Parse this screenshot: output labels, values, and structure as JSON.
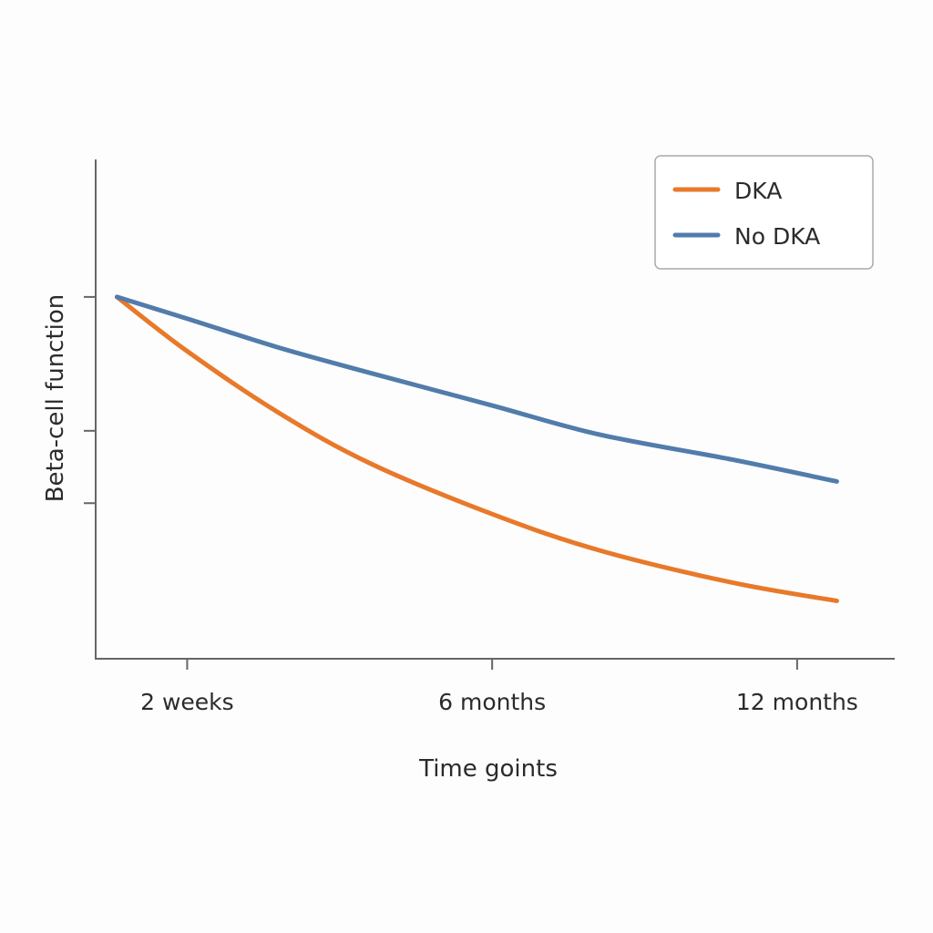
{
  "chart_data": {
    "type": "line",
    "title": "",
    "xlabel": "Time goints",
    "ylabel": "Beta-cell function",
    "x_ticks": [
      {
        "label": "2 weeks",
        "pos": 0
      },
      {
        "label": "6 months",
        "pos": 1
      },
      {
        "label": "12 months",
        "pos": 2
      }
    ],
    "y_ticks_unlabeled": [
      1.0,
      0.63,
      0.43
    ],
    "xlim": [
      -0.3,
      2.32
    ],
    "ylim": [
      0,
      1.38
    ],
    "grid": false,
    "legend_position": "top-right",
    "series": [
      {
        "name": "DKA",
        "color": "#e8792a",
        "x": [
          -0.23,
          0,
          0.3,
          0.6,
          1.0,
          1.35,
          1.79,
          2.13
        ],
        "y": [
          1.0,
          0.85,
          0.68,
          0.54,
          0.4,
          0.3,
          0.21,
          0.16
        ]
      },
      {
        "name": "No DKA",
        "color": "#517cab",
        "x": [
          -0.23,
          0,
          0.3,
          0.6,
          1.0,
          1.35,
          1.79,
          2.13
        ],
        "y": [
          1.0,
          0.94,
          0.86,
          0.79,
          0.7,
          0.62,
          0.55,
          0.49
        ]
      }
    ]
  }
}
